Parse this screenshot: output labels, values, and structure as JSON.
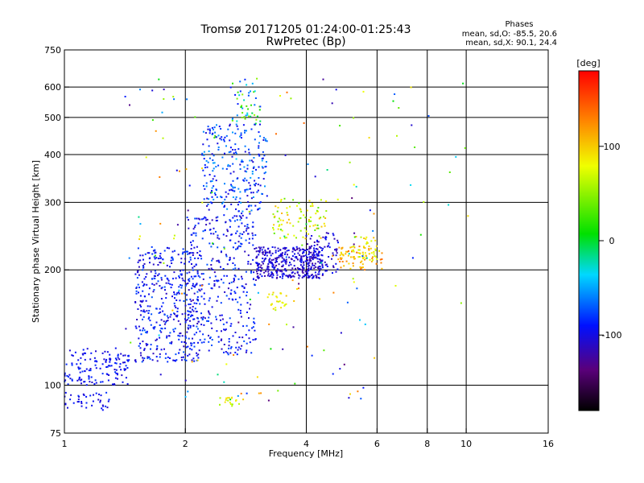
{
  "chart_data": {
    "type": "scatter",
    "title": "Tromsø 20171205 01:24:00-01:25:43",
    "subtitle": "RwPretec (Bp)",
    "xlabel": "Frequency [MHz]",
    "ylabel": "Stationary phase Virtual Height [km]",
    "x_scale": "log",
    "y_scale": "log",
    "xlim": [
      1,
      16
    ],
    "ylim": [
      75,
      750
    ],
    "x_ticks": [
      1,
      2,
      4,
      6,
      8,
      10,
      16
    ],
    "x_tick_labels": [
      "1",
      "2",
      "4",
      "6",
      "8",
      "10",
      "16"
    ],
    "y_ticks": [
      75,
      100,
      200,
      300,
      400,
      500,
      600,
      750
    ],
    "y_tick_labels": [
      "75",
      "100",
      "200",
      "300",
      "400",
      "500",
      "600",
      "750"
    ],
    "x_gridlines": [
      2,
      4,
      6,
      8,
      10
    ],
    "y_gridlines": [
      100,
      200,
      300,
      400,
      500,
      600
    ],
    "grid": true,
    "phase_stats": {
      "heading": "Phases",
      "line_o": "mean, sd,O: -85.5, 20.6",
      "line_x": "mean, sd,X:  90.1, 24.4"
    },
    "colorbar": {
      "label": "[deg]",
      "range": [
        -180,
        180
      ],
      "ticks": [
        100,
        0,
        -100
      ],
      "tick_labels": [
        "100",
        "0",
        "-100"
      ]
    },
    "clusters": [
      {
        "f": [
          1.0,
          1.45
        ],
        "h": [
          100,
          125
        ],
        "phase": [
          -110,
          -80
        ],
        "n": 140
      },
      {
        "f": [
          1.0,
          1.3
        ],
        "h": [
          86,
          96
        ],
        "phase": [
          -110,
          -80
        ],
        "n": 40
      },
      {
        "f": [
          1.5,
          2.2
        ],
        "h": [
          115,
          230
        ],
        "phase": [
          -115,
          -70
        ],
        "n": 420
      },
      {
        "f": [
          2.0,
          3.0
        ],
        "h": [
          120,
          280
        ],
        "phase": [
          -115,
          -70
        ],
        "n": 360
      },
      {
        "f": [
          2.2,
          3.2
        ],
        "h": [
          280,
          480
        ],
        "phase": [
          -110,
          -50
        ],
        "n": 260
      },
      {
        "f": [
          2.6,
          3.1
        ],
        "h": [
          480,
          640
        ],
        "phase": [
          -90,
          60
        ],
        "n": 50
      },
      {
        "f": [
          3.0,
          4.4
        ],
        "h": [
          190,
          230
        ],
        "phase": [
          -125,
          -90
        ],
        "n": 360
      },
      {
        "f": [
          3.3,
          4.5
        ],
        "h": [
          240,
          310
        ],
        "phase": [
          30,
          110
        ],
        "n": 90
      },
      {
        "f": [
          4.0,
          4.8
        ],
        "h": [
          195,
          250
        ],
        "phase": [
          -120,
          -90
        ],
        "n": 80
      },
      {
        "f": [
          4.8,
          6.2
        ],
        "h": [
          200,
          230
        ],
        "phase": [
          90,
          140
        ],
        "n": 60
      },
      {
        "f": [
          5.2,
          6.0
        ],
        "h": [
          210,
          245
        ],
        "phase": [
          60,
          110
        ],
        "n": 50
      },
      {
        "f": [
          2.4,
          2.8
        ],
        "h": [
          88,
          93
        ],
        "phase": [
          50,
          100
        ],
        "n": 18
      },
      {
        "f": [
          3.2,
          3.6
        ],
        "h": [
          155,
          175
        ],
        "phase": [
          60,
          100
        ],
        "n": 25
      },
      {
        "f": [
          1.4,
          6.0
        ],
        "h": [
          90,
          640
        ],
        "phase": [
          -140,
          140
        ],
        "n": 160
      },
      {
        "f": [
          6.5,
          10.2
        ],
        "h": [
          160,
          640
        ],
        "phase": [
          -120,
          120
        ],
        "n": 20
      }
    ]
  }
}
